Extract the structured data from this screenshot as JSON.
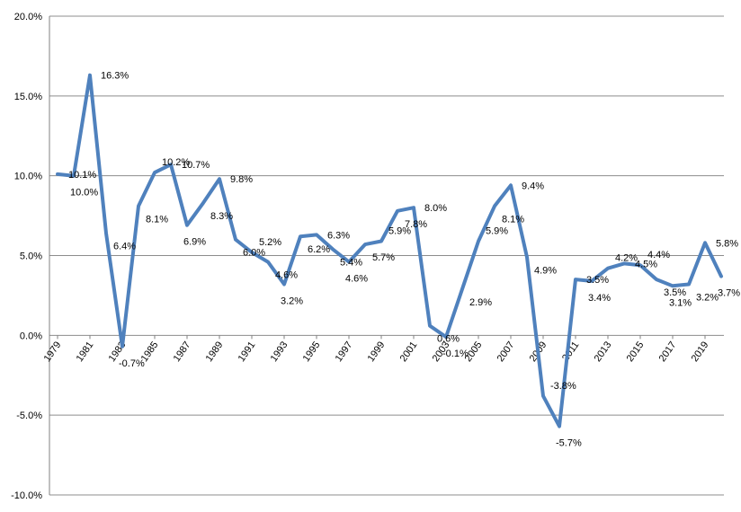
{
  "chart_data": {
    "type": "line",
    "title": "",
    "xlabel": "",
    "ylabel": "",
    "ylim": [
      -10,
      20
    ],
    "yticks": [
      -10,
      -5,
      0,
      5,
      10,
      15,
      20
    ],
    "ytick_labels": [
      "-10.0%",
      "-5.0%",
      "0.0%",
      "5.0%",
      "10.0%",
      "15.0%",
      "20.0%"
    ],
    "xtick_labels": [
      "1979",
      "1981",
      "1983",
      "1985",
      "1987",
      "1989",
      "1991",
      "1993",
      "1995",
      "1997",
      "1999",
      "2001",
      "2003",
      "2005",
      "2007",
      "2009",
      "2011",
      "2013",
      "2015",
      "2017",
      "2019"
    ],
    "grid": "horizontal",
    "line_color": "#4F81BD",
    "x": [
      1979,
      1980,
      1981,
      1982,
      1983,
      1984,
      1985,
      1986,
      1987,
      1988,
      1989,
      1990,
      1991,
      1992,
      1993,
      1994,
      1995,
      1996,
      1997,
      1998,
      1999,
      2000,
      2001,
      2002,
      2003,
      2004,
      2005,
      2006,
      2007,
      2008,
      2009,
      2010,
      2011,
      2012,
      2013,
      2014,
      2015,
      2016,
      2017,
      2018,
      2019,
      2020
    ],
    "values": [
      10.1,
      10.0,
      16.3,
      6.4,
      -0.7,
      8.1,
      10.2,
      10.7,
      6.9,
      8.3,
      9.8,
      6.0,
      5.2,
      4.6,
      3.2,
      6.2,
      6.3,
      5.4,
      4.6,
      5.7,
      5.9,
      7.8,
      8.0,
      0.6,
      -0.1,
      2.9,
      5.9,
      8.1,
      9.4,
      4.9,
      -3.8,
      -5.7,
      3.5,
      3.4,
      4.2,
      4.5,
      4.4,
      3.5,
      3.1,
      3.2,
      5.8,
      3.7
    ],
    "data_labels": [
      "10.1%",
      "10.0%",
      "16.3%",
      "6.4%",
      "-0.7%",
      "8.1%",
      "10.2%",
      "10.7%",
      "6.9%",
      "8.3%",
      "9.8%",
      "6.0%",
      "5.2%",
      "4.6%",
      "3.2%",
      "6.2%",
      "6.3%",
      "5.4%",
      "4.6%",
      "5.7%",
      "5.9%",
      "7.8%",
      "8.0%",
      "0.6%",
      "-0.1%",
      "2.9%",
      "5.9%",
      "8.1%",
      "9.4%",
      "4.9%",
      "-3.8%",
      "-5.7%",
      "3.5%",
      "3.4%",
      "4.2%",
      "4.5%",
      "4.4%",
      "3.5%",
      "3.1%",
      "3.2%",
      "5.8%",
      "3.7%"
    ]
  }
}
